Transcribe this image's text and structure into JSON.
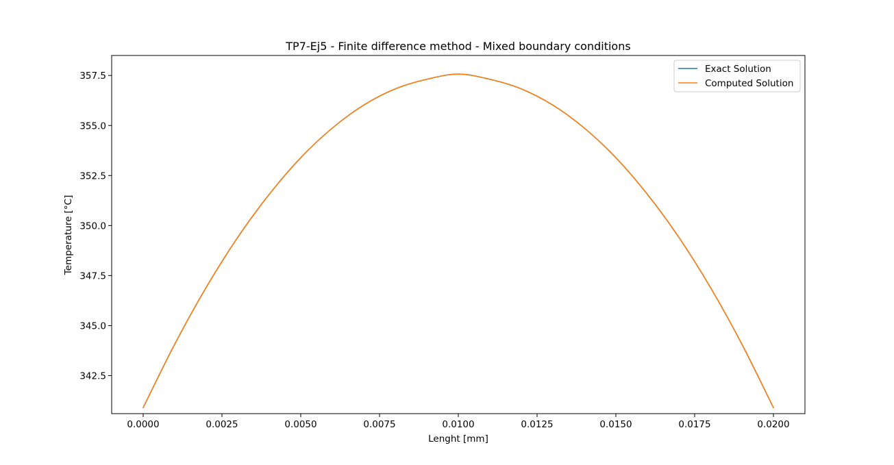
{
  "chart_data": {
    "type": "line",
    "title": "TP7-Ej5 - Finite difference method - Mixed boundary conditions",
    "xlabel": "Lenght [mm]",
    "ylabel": "Temperature [°C]",
    "xlim": [
      -0.001,
      0.021
    ],
    "ylim": [
      340.6,
      358.5
    ],
    "x_ticks": [
      0.0,
      0.0025,
      0.005,
      0.0075,
      0.01,
      0.0125,
      0.015,
      0.0175,
      0.02
    ],
    "x_tick_labels": [
      "0.0000",
      "0.0025",
      "0.0050",
      "0.0075",
      "0.0100",
      "0.0125",
      "0.0150",
      "0.0175",
      "0.0200"
    ],
    "y_ticks": [
      342.5,
      345.0,
      347.5,
      350.0,
      352.5,
      355.0,
      357.5
    ],
    "y_tick_labels": [
      "342.5",
      "345.0",
      "347.5",
      "350.0",
      "352.5",
      "355.0",
      "357.5"
    ],
    "grid": false,
    "legend_position": "top-right",
    "series": [
      {
        "name": "Exact Solution",
        "color": "#1f77b4",
        "x": [
          0.0,
          0.001,
          0.002,
          0.003,
          0.004,
          0.005,
          0.006,
          0.007,
          0.008,
          0.009,
          0.01,
          0.011,
          0.012,
          0.013,
          0.014,
          0.015,
          0.016,
          0.017,
          0.018,
          0.019,
          0.02
        ],
        "y": [
          340.9,
          344.07,
          346.91,
          349.41,
          351.56,
          353.39,
          354.87,
          356.02,
          356.83,
          357.31,
          357.57,
          357.31,
          356.83,
          356.02,
          354.87,
          353.39,
          351.56,
          349.41,
          346.91,
          344.07,
          340.9
        ]
      },
      {
        "name": "Computed Solution",
        "color": "#ff7f0e",
        "x": [
          0.0,
          0.001,
          0.002,
          0.003,
          0.004,
          0.005,
          0.006,
          0.007,
          0.008,
          0.009,
          0.01,
          0.011,
          0.012,
          0.013,
          0.014,
          0.015,
          0.016,
          0.017,
          0.018,
          0.019,
          0.02
        ],
        "y": [
          340.9,
          344.07,
          346.91,
          349.41,
          351.56,
          353.39,
          354.87,
          356.02,
          356.83,
          357.31,
          357.57,
          357.31,
          356.83,
          356.02,
          354.87,
          353.39,
          351.56,
          349.41,
          346.91,
          344.07,
          340.9
        ]
      }
    ]
  }
}
